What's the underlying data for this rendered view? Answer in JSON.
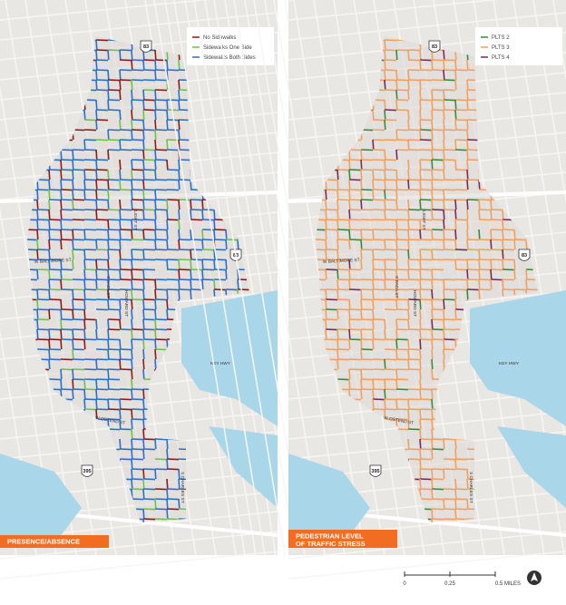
{
  "panels": [
    {
      "banner": [
        "PRESENCE/ABSENCE"
      ],
      "legend": [
        {
          "label": "No Sidewalks",
          "color": "#8b1a1a"
        },
        {
          "label": "Sidewalks One Side",
          "color": "#6cc24a"
        },
        {
          "label": "Sidewalks Both Sides",
          "color": "#2a6fc9"
        }
      ],
      "streets": [
        "W BALTIMORE ST",
        "KEY HWY",
        "W OSTEND ST",
        "LIGHT ST",
        "HOWARD ST",
        "S PACA ST",
        "S CHARLES ST"
      ],
      "shields": [
        "83",
        "83",
        "395"
      ]
    },
    {
      "banner": [
        "PEDESTRIAN LEVEL",
        "OF TRAFFIC STRESS"
      ],
      "legend": [
        {
          "label": "PLTS 2",
          "color": "#3a8a3a"
        },
        {
          "label": "PLTS 3",
          "color": "#f0a060"
        },
        {
          "label": "PLTS 4",
          "color": "#7a2a5a"
        }
      ],
      "streets": [
        "W BALTIMORE ST",
        "KEY HWY",
        "W OSTEND ST",
        "LIGHT ST",
        "HOWARD ST",
        "S PACA ST",
        "S CHARLES ST"
      ],
      "shields": [
        "83",
        "83",
        "395"
      ]
    }
  ],
  "scale": [
    "0",
    "0.25",
    "0.5 MILES"
  ]
}
